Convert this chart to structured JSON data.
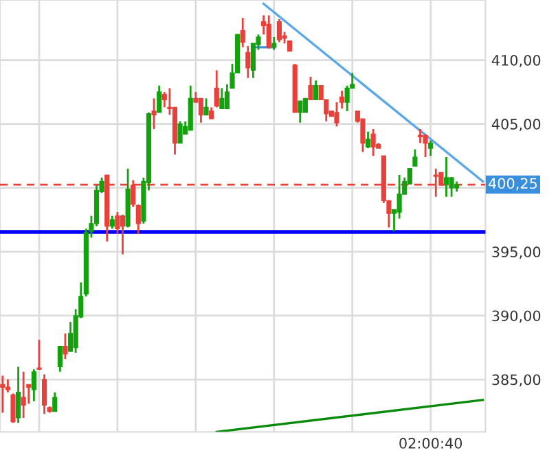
{
  "chart_data": {
    "type": "candlestick",
    "categories": [
      null,
      null,
      null,
      null,
      null,
      null,
      null,
      null,
      null,
      null,
      null,
      null,
      null,
      null,
      null,
      null,
      null,
      null,
      null,
      null,
      null,
      null,
      null,
      null,
      null,
      null,
      null,
      null,
      null,
      null,
      null,
      null,
      null,
      null,
      null,
      null,
      null,
      null,
      null,
      null,
      null,
      null,
      null,
      null,
      null,
      null,
      null,
      null,
      null,
      null,
      null,
      null,
      null,
      null,
      null,
      null,
      null,
      null,
      null,
      null,
      null,
      null,
      null,
      null,
      null,
      null,
      null,
      null,
      null,
      null,
      null,
      null,
      null,
      null,
      null,
      null,
      null,
      null,
      null,
      null,
      null,
      null,
      "02:00:40",
      null,
      null,
      null,
      null,
      null,
      null,
      null,
      null,
      null,
      null
    ],
    "ohlc": [
      [
        384.6,
        385.3,
        382.4,
        384.4
      ],
      [
        384.4,
        385.0,
        384.0,
        384.2
      ],
      [
        383.8,
        383.9,
        381.6,
        381.7
      ],
      [
        382.0,
        386.0,
        381.6,
        384.0
      ],
      [
        383.6,
        385.6,
        382.0,
        383.0
      ],
      [
        384.6,
        384.6,
        383.1,
        384.4
      ],
      [
        384.2,
        385.8,
        383.3,
        385.6
      ],
      [
        385.9,
        388.1,
        385.8,
        385.8
      ],
      [
        385.0,
        385.4,
        382.3,
        383.0
      ],
      [
        382.8,
        382.9,
        382.4,
        382.5
      ],
      [
        382.5,
        384.0,
        382.5,
        383.6
      ],
      [
        386.0,
        387.6,
        385.6,
        387.6
      ],
      [
        387.6,
        388.6,
        386.6,
        387.0
      ],
      [
        387.2,
        389.5,
        387.2,
        388.6
      ],
      [
        387.5,
        390.5,
        387.1,
        390.0
      ],
      [
        389.9,
        392.6,
        389.8,
        391.5
      ],
      [
        391.7,
        396.8,
        391.5,
        396.5
      ],
      [
        396.6,
        397.8,
        396.1,
        397.2
      ],
      [
        397.2,
        400.2,
        397.0,
        399.8
      ],
      [
        399.7,
        400.8,
        399.6,
        400.5
      ],
      [
        401.0,
        401.0,
        395.8,
        397.0
      ],
      [
        397.0,
        397.8,
        396.8,
        397.5
      ],
      [
        397.8,
        398.1,
        396.4,
        396.8
      ],
      [
        397.8,
        397.9,
        394.8,
        397.0
      ],
      [
        397.0,
        401.5,
        396.9,
        399.9
      ],
      [
        400.2,
        400.6,
        398.5,
        398.7
      ],
      [
        398.6,
        398.7,
        396.4,
        397.2
      ],
      [
        397.4,
        400.8,
        397.2,
        400.5
      ],
      [
        400.4,
        405.9,
        399.8,
        405.8
      ],
      [
        406.0,
        407.0,
        404.6,
        405.7
      ],
      [
        405.9,
        408.0,
        405.9,
        407.5
      ],
      [
        407.3,
        407.5,
        406.3,
        406.9
      ],
      [
        406.3,
        407.8,
        405.7,
        406.2
      ],
      [
        406.3,
        406.3,
        402.6,
        403.5
      ],
      [
        403.5,
        405.2,
        403.5,
        405.0
      ],
      [
        404.2,
        405.2,
        404.2,
        404.8
      ],
      [
        404.5,
        408.0,
        404.5,
        407.0
      ],
      [
        407.0,
        407.5,
        406.7,
        406.7
      ],
      [
        407.0,
        407.0,
        405.1,
        405.7
      ],
      [
        405.7,
        407.0,
        405.7,
        406.3
      ],
      [
        406.0,
        406.3,
        405.4,
        405.4
      ],
      [
        407.8,
        409.2,
        406.3,
        406.4
      ],
      [
        406.2,
        407.8,
        406.2,
        407.0
      ],
      [
        406.2,
        408.1,
        406.2,
        407.5
      ],
      [
        407.8,
        409.7,
        407.8,
        409.0
      ],
      [
        409.0,
        412.0,
        409.0,
        412.0
      ],
      [
        412.3,
        413.3,
        411.0,
        411.4
      ],
      [
        410.6,
        411.1,
        408.6,
        409.4
      ],
      [
        409.2,
        411.3,
        408.6,
        411.3
      ],
      [
        411.2,
        412.0,
        410.8,
        411.8
      ],
      [
        413.0,
        413.5,
        412.0,
        412.7
      ],
      [
        412.8,
        413.5,
        410.9,
        411.0
      ],
      [
        411.0,
        411.8,
        410.8,
        411.3
      ],
      [
        413.0,
        413.2,
        411.4,
        411.6
      ],
      [
        411.9,
        412.2,
        411.3,
        411.7
      ],
      [
        411.5,
        411.5,
        410.7,
        410.7
      ],
      [
        409.6,
        409.7,
        405.9,
        405.9
      ],
      [
        405.9,
        406.8,
        405.1,
        406.8
      ],
      [
        405.9,
        407.0,
        405.9,
        407.0
      ],
      [
        408.0,
        408.7,
        406.9,
        406.9
      ],
      [
        406.9,
        408.4,
        406.9,
        408.0
      ],
      [
        408.0,
        408.0,
        406.9,
        406.9
      ],
      [
        406.9,
        406.9,
        405.2,
        405.8
      ],
      [
        406.0,
        406.0,
        405.6,
        405.6
      ],
      [
        405.9,
        406.7,
        404.8,
        405.1
      ],
      [
        407.1,
        407.6,
        406.2,
        406.7
      ],
      [
        406.7,
        408.0,
        406.0,
        407.8
      ],
      [
        407.8,
        409.0,
        407.8,
        408.1
      ],
      [
        406.0,
        406.0,
        405.1,
        405.2
      ],
      [
        405.4,
        405.4,
        402.8,
        403.5
      ],
      [
        403.2,
        404.4,
        403.1,
        403.8
      ],
      [
        404.2,
        404.6,
        402.5,
        403.2
      ],
      [
        403.4,
        403.5,
        403.1,
        403.1
      ],
      [
        402.5,
        402.5,
        398.8,
        399.0
      ],
      [
        399.0,
        399.0,
        396.9,
        398.0
      ],
      [
        398.0,
        398.3,
        396.6,
        398.3
      ],
      [
        398.1,
        401.0,
        397.6,
        399.5
      ],
      [
        399.5,
        400.8,
        399.5,
        400.5
      ],
      [
        400.3,
        401.5,
        400.3,
        401.5
      ],
      [
        401.7,
        403.0,
        401.7,
        402.4
      ],
      [
        404.1,
        404.6,
        403.5,
        404.0
      ],
      [
        404.1,
        404.2,
        402.4,
        403.5
      ],
      [
        403.1,
        403.7,
        402.5,
        403.5
      ],
      [
        401.0,
        401.5,
        399.3,
        400.9
      ],
      [
        401.2,
        401.2,
        400.2,
        400.2
      ],
      [
        400.3,
        402.4,
        399.3,
        400.8
      ],
      [
        400.0,
        400.8,
        399.3,
        400.8
      ],
      [
        400.0,
        400.5,
        399.7,
        400.25
      ],
      null,
      null,
      null,
      null,
      null
    ],
    "colors": [
      "#e8403a",
      "#e8403a",
      "#e8403a",
      "#13a10e",
      "#e8403a",
      "#e8403a",
      "#13a10e",
      "#e8403a",
      "#e8403a",
      "#e8403a",
      "#13a10e",
      "#13a10e",
      "#e8403a",
      "#13a10e",
      "#13a10e",
      "#13a10e",
      "#13a10e",
      "#13a10e",
      "#13a10e",
      "#13a10e",
      "#e8403a",
      "#13a10e",
      "#e8403a",
      "#e8403a",
      "#13a10e",
      "#e8403a",
      "#e8403a",
      "#13a10e",
      "#13a10e",
      "#e8403a",
      "#13a10e",
      "#e8403a",
      "#e8403a",
      "#e8403a",
      "#13a10e",
      "#13a10e",
      "#13a10e",
      "#e8403a",
      "#e8403a",
      "#13a10e",
      "#e8403a",
      "#e8403a",
      "#13a10e",
      "#13a10e",
      "#13a10e",
      "#13a10e",
      "#e8403a",
      "#e8403a",
      "#13a10e",
      "#13a10e",
      "#e8403a",
      "#e8403a",
      "#13a10e",
      "#e8403a",
      "#e8403a",
      "#e8403a",
      "#e8403a",
      "#13a10e",
      "#13a10e",
      "#e8403a",
      "#13a10e",
      "#e8403a",
      "#e8403a",
      "#e8403a",
      "#e8403a",
      "#e8403a",
      "#13a10e",
      "#13a10e",
      "#e8403a",
      "#e8403a",
      "#13a10e",
      "#e8403a",
      "#e8403a",
      "#e8403a",
      "#e8403a",
      "#13a10e",
      "#13a10e",
      "#13a10e",
      "#13a10e",
      "#13a10e",
      "#e8403a",
      "#e8403a",
      "#13a10e",
      "#e8403a",
      "#e8403a",
      "#13a10e",
      "#13a10e",
      "#13a10e",
      null,
      null,
      null,
      null,
      null
    ],
    "series": [
      {
        "type": "line",
        "color": "#5aa9e6",
        "values": [
          null,
          null,
          null,
          null,
          null,
          null,
          null,
          null,
          null,
          null,
          null,
          null,
          null,
          null,
          null,
          null,
          null,
          null,
          null,
          null,
          null,
          null,
          null,
          null,
          null,
          null,
          null,
          null,
          null,
          null,
          null,
          null,
          null,
          null,
          null,
          null,
          null,
          null,
          null,
          null,
          null,
          null,
          null,
          null,
          null,
          null,
          null,
          null,
          null,
          null,
          414.4,
          null,
          null,
          null,
          null,
          null,
          null,
          null,
          null,
          null,
          null,
          null,
          null,
          null,
          null,
          null,
          null,
          null,
          null,
          null,
          null,
          null,
          null,
          null,
          null,
          null,
          null,
          null,
          null,
          null,
          null,
          null,
          null,
          null,
          null,
          null,
          null,
          null,
          null,
          null,
          null,
          null,
          400.5
        ]
      },
      {
        "type": "line",
        "color": "#3a8fe0",
        "values": [
          null,
          null,
          null,
          null,
          null,
          null,
          null,
          null,
          null,
          null,
          null,
          null,
          null,
          null,
          null,
          null,
          null,
          null,
          null,
          null,
          null,
          null,
          null,
          null,
          null,
          null,
          null,
          null,
          null,
          null,
          null,
          null,
          null,
          null,
          null,
          null,
          null,
          null,
          null,
          null,
          null,
          null,
          null,
          null,
          null,
          null,
          null,
          null,
          411.0,
          null,
          null,
          null,
          411.0,
          null,
          null,
          null,
          null,
          null,
          null,
          null,
          null,
          null,
          null,
          null,
          null,
          null,
          null,
          null,
          null,
          null,
          null,
          null,
          null,
          null,
          null,
          null,
          null,
          null,
          null,
          null,
          null,
          null,
          null,
          null,
          null,
          null,
          null,
          null,
          null,
          null,
          null,
          null,
          null
        ]
      },
      {
        "type": "line",
        "color": "#0a8a0a",
        "values": [
          null,
          null,
          null,
          null,
          null,
          null,
          null,
          null,
          null,
          null,
          null,
          null,
          null,
          null,
          null,
          null,
          null,
          null,
          null,
          null,
          null,
          null,
          null,
          null,
          null,
          null,
          null,
          null,
          null,
          null,
          null,
          null,
          null,
          null,
          null,
          null,
          null,
          null,
          null,
          null,
          null,
          380.9,
          null,
          null,
          null,
          null,
          null,
          null,
          null,
          null,
          null,
          null,
          null,
          null,
          null,
          null,
          null,
          null,
          null,
          null,
          null,
          null,
          null,
          null,
          null,
          null,
          null,
          null,
          null,
          null,
          null,
          null,
          null,
          null,
          null,
          null,
          null,
          null,
          null,
          null,
          null,
          null,
          null,
          null,
          null,
          null,
          null,
          null,
          null,
          null,
          null,
          null,
          383.4
        ]
      }
    ],
    "ref_lines": [
      {
        "axis": "y",
        "value": 396.55,
        "color": "#0000ff",
        "line_style": "solid"
      },
      {
        "axis": "y",
        "value": 400.25,
        "label": "400,25",
        "color": "#e8403a",
        "line_style": "dashed"
      }
    ],
    "ylim": [
      380.9,
      414.7
    ],
    "yticks": [
      {
        "value": 385,
        "label": "385,00"
      },
      {
        "value": 390,
        "label": "390,00"
      },
      {
        "value": 395,
        "label": "395,00"
      },
      {
        "value": 400,
        "label": null
      },
      {
        "value": 405,
        "label": "405,00"
      },
      {
        "value": 410,
        "label": "410,00"
      }
    ],
    "grid": true
  }
}
